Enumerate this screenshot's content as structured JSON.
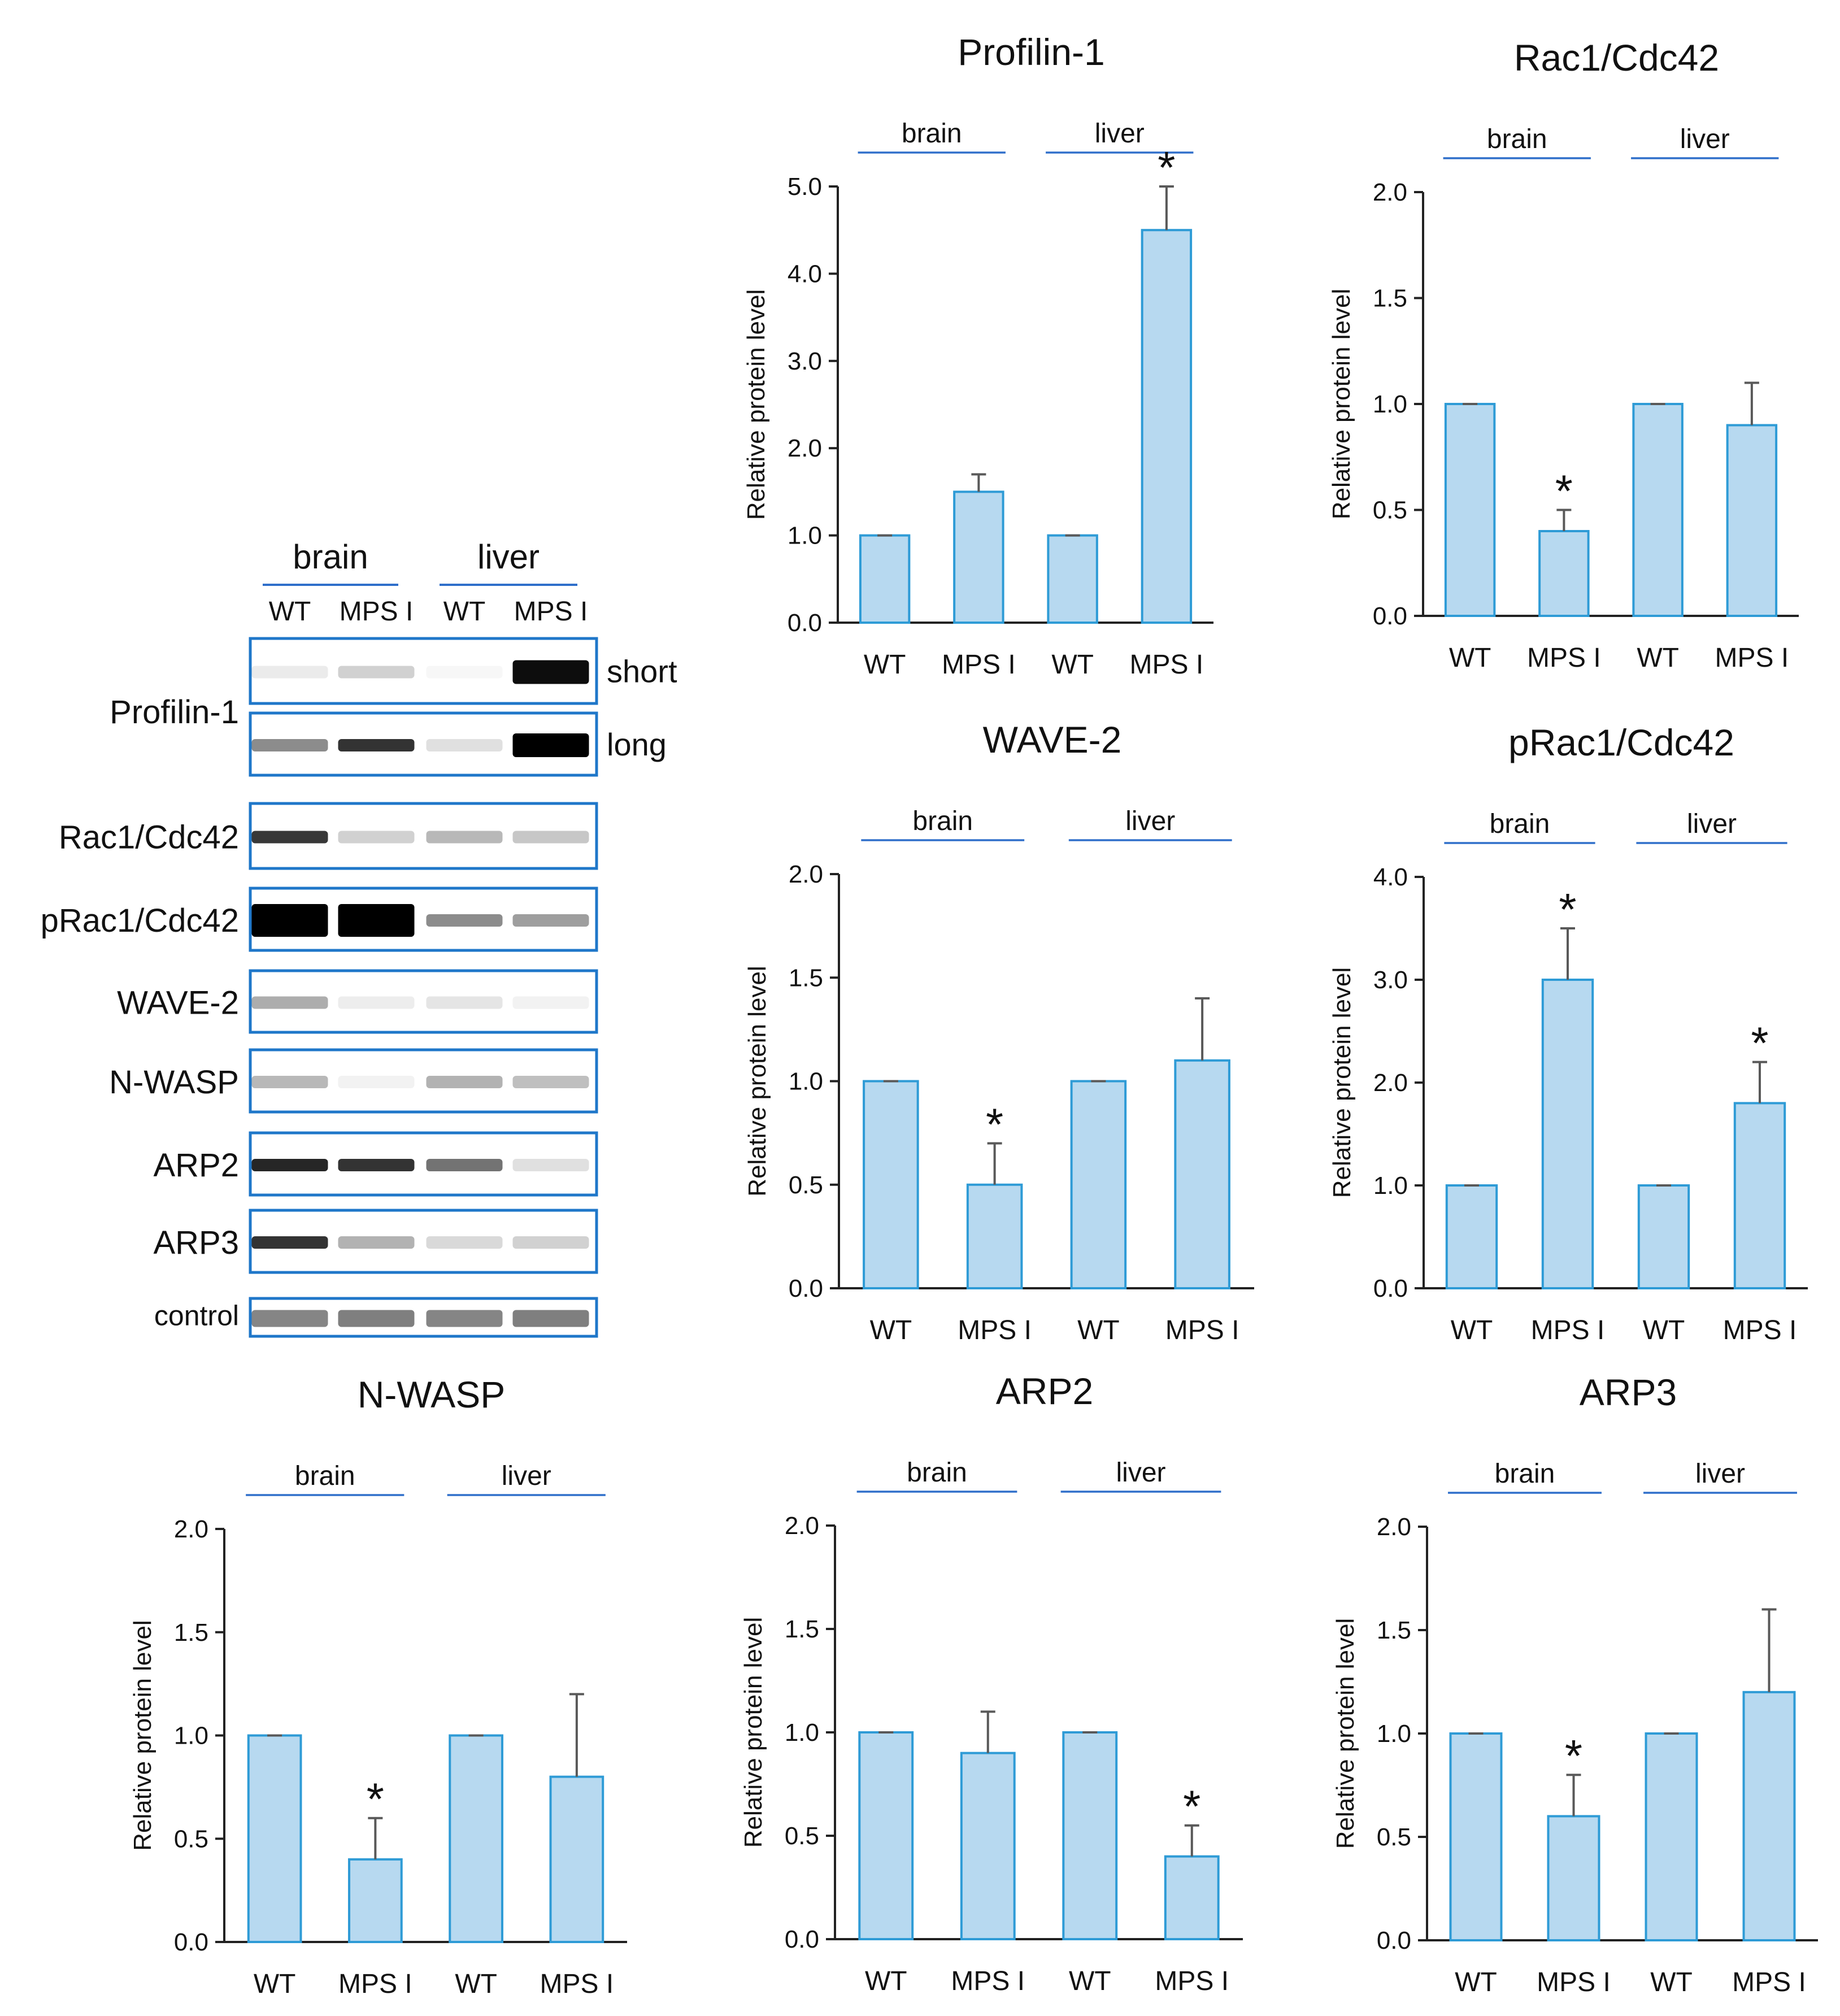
{
  "theme": {
    "bar_fill": "#b7d9f0",
    "bar_stroke": "#2e9bd6",
    "error_color": "#595959",
    "line_color": "#2f6fca",
    "axis_color": "#222222",
    "blot_frame": "#1f77c9"
  },
  "western_blot": {
    "groups": [
      "brain",
      "liver"
    ],
    "lanes": [
      "WT",
      "MPS I",
      "WT",
      "MPS I"
    ],
    "rows": [
      {
        "label": "Profilin-1",
        "exposure": "short",
        "bands": [
          0.08,
          0.18,
          0.03,
          0.95
        ]
      },
      {
        "label": "Profilin-1",
        "exposure": "long",
        "bands": [
          0.45,
          0.8,
          0.12,
          1.0
        ]
      },
      {
        "label": "Rac1/Cdc42",
        "bands": [
          0.78,
          0.18,
          0.28,
          0.22
        ]
      },
      {
        "label": "pRac1/Cdc42",
        "bands": [
          1.0,
          1.0,
          0.45,
          0.38
        ]
      },
      {
        "label": "WAVE-2",
        "bands": [
          0.32,
          0.07,
          0.1,
          0.05
        ]
      },
      {
        "label": "N-WASP",
        "bands": [
          0.28,
          0.05,
          0.3,
          0.25
        ]
      },
      {
        "label": "ARP2",
        "bands": [
          0.85,
          0.8,
          0.55,
          0.12
        ]
      },
      {
        "label": "ARP3",
        "bands": [
          0.8,
          0.3,
          0.15,
          0.18
        ]
      },
      {
        "label": "control",
        "bands": [
          0.48,
          0.5,
          0.48,
          0.5
        ]
      }
    ],
    "exposure_labels": {
      "short": "short",
      "long": "long"
    },
    "profilin_label": "Profilin-1"
  },
  "chart_data": [
    {
      "type": "bar",
      "title": "Profilin-1",
      "ylabel": "Relative protein level",
      "ylim": [
        0,
        5
      ],
      "yticks": [
        "0.0",
        "1.0",
        "2.0",
        "3.0",
        "4.0",
        "5.0"
      ],
      "groups": [
        "brain",
        "liver"
      ],
      "categories": [
        "WT",
        "MPS I",
        "WT",
        "MPS I"
      ],
      "values": [
        1.0,
        1.5,
        1.0,
        4.5
      ],
      "errors": [
        0.0,
        0.2,
        0.0,
        0.5
      ],
      "significant": [
        false,
        false,
        false,
        true
      ],
      "significance_mark": "*"
    },
    {
      "type": "bar",
      "title": "Rac1/Cdc42",
      "ylabel": "Relative protein level",
      "ylim": [
        0,
        2
      ],
      "yticks": [
        "0.0",
        "0.5",
        "1.0",
        "1.5",
        "2.0"
      ],
      "groups": [
        "brain",
        "liver"
      ],
      "categories": [
        "WT",
        "MPS I",
        "WT",
        "MPS I"
      ],
      "values": [
        1.0,
        0.4,
        1.0,
        0.9
      ],
      "errors": [
        0.0,
        0.1,
        0.0,
        0.2
      ],
      "significant": [
        false,
        true,
        false,
        false
      ],
      "significance_mark": "*"
    },
    {
      "type": "bar",
      "title": "WAVE-2",
      "ylabel": "Relative protein level",
      "ylim": [
        0,
        2
      ],
      "yticks": [
        "0.0",
        "0.5",
        "1.0",
        "1.5",
        "2.0"
      ],
      "groups": [
        "brain",
        "liver"
      ],
      "categories": [
        "WT",
        "MPS I",
        "WT",
        "MPS I"
      ],
      "values": [
        1.0,
        0.5,
        1.0,
        1.1
      ],
      "errors": [
        0.0,
        0.2,
        0.0,
        0.3
      ],
      "significant": [
        false,
        true,
        false,
        false
      ],
      "significance_mark": "*"
    },
    {
      "type": "bar",
      "title": "pRac1/Cdc42",
      "ylabel": "Relative protein level",
      "ylim": [
        0,
        4
      ],
      "yticks": [
        "0.0",
        "1.0",
        "2.0",
        "3.0",
        "4.0"
      ],
      "groups": [
        "brain",
        "liver"
      ],
      "categories": [
        "WT",
        "MPS I",
        "WT",
        "MPS I"
      ],
      "values": [
        1.0,
        3.0,
        1.0,
        1.8
      ],
      "errors": [
        0.0,
        0.5,
        0.0,
        0.4
      ],
      "significant": [
        false,
        true,
        false,
        true
      ],
      "significance_mark": "*"
    },
    {
      "type": "bar",
      "title": "N-WASP",
      "ylabel": "Relative protein level",
      "ylim": [
        0,
        2
      ],
      "yticks": [
        "0.0",
        "0.5",
        "1.0",
        "1.5",
        "2.0"
      ],
      "groups": [
        "brain",
        "liver"
      ],
      "categories": [
        "WT",
        "MPS I",
        "WT",
        "MPS I"
      ],
      "values": [
        1.0,
        0.4,
        1.0,
        0.8
      ],
      "errors": [
        0.0,
        0.2,
        0.0,
        0.4
      ],
      "significant": [
        false,
        true,
        false,
        false
      ],
      "significance_mark": "*"
    },
    {
      "type": "bar",
      "title": "ARP2",
      "ylabel": "Relative protein level",
      "ylim": [
        0,
        2
      ],
      "yticks": [
        "0.0",
        "0.5",
        "1.0",
        "1.5",
        "2.0"
      ],
      "groups": [
        "brain",
        "liver"
      ],
      "categories": [
        "WT",
        "MPS I",
        "WT",
        "MPS I"
      ],
      "values": [
        1.0,
        0.9,
        1.0,
        0.4
      ],
      "errors": [
        0.0,
        0.2,
        0.0,
        0.15
      ],
      "significant": [
        false,
        false,
        false,
        true
      ],
      "significance_mark": "*"
    },
    {
      "type": "bar",
      "title": "ARP3",
      "ylabel": "Relative protein level",
      "ylim": [
        0,
        2
      ],
      "yticks": [
        "0.0",
        "0.5",
        "1.0",
        "1.5",
        "2.0"
      ],
      "groups": [
        "brain",
        "liver"
      ],
      "categories": [
        "WT",
        "MPS I",
        "WT",
        "MPS I"
      ],
      "values": [
        1.0,
        0.6,
        1.0,
        1.2
      ],
      "errors": [
        0.0,
        0.2,
        0.0,
        0.4
      ],
      "significant": [
        false,
        true,
        false,
        false
      ],
      "significance_mark": "*"
    }
  ]
}
